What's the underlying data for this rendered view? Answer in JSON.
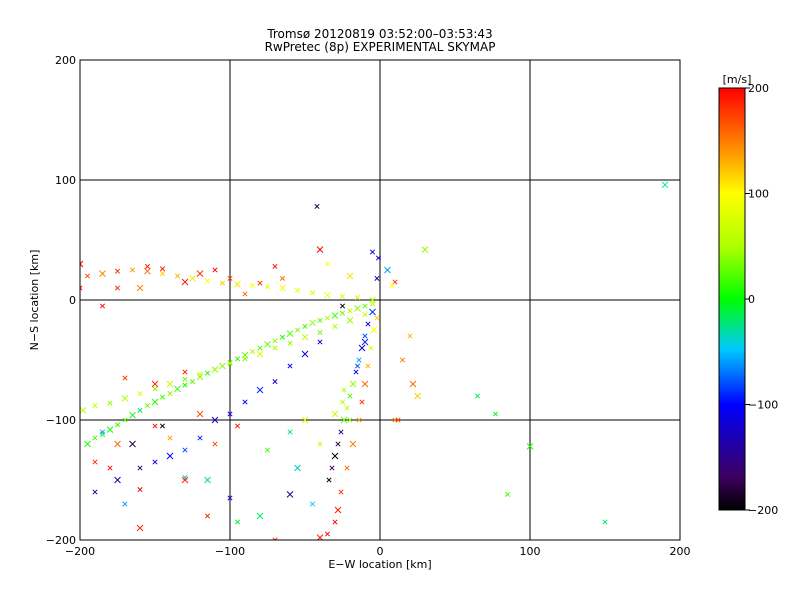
{
  "chart_data": {
    "type": "scatter",
    "title": "Tromsø 20120819 03:52:00–03:53:43",
    "subtitle": "RwPretec (8p) EXPERIMENTAL SKYMAP",
    "xlabel": "E−W location [km]",
    "ylabel": "N−S location [km]",
    "xlim": [
      -200,
      200
    ],
    "ylim": [
      -200,
      200
    ],
    "xticks": [
      "−200",
      "−100",
      "0",
      "100",
      "200"
    ],
    "yticks": [
      "200",
      "100",
      "0",
      "−100",
      "−200"
    ],
    "grid": true,
    "colorbar": {
      "unit": "[m/s]",
      "range": [
        -200,
        200
      ],
      "ticks": [
        "200",
        "100",
        "0",
        "−100",
        "−200"
      ]
    },
    "points": [
      [
        -195,
        -120,
        10
      ],
      [
        -190,
        -115,
        20
      ],
      [
        -185,
        -112,
        -10
      ],
      [
        -180,
        -108,
        5
      ],
      [
        -175,
        -104,
        15
      ],
      [
        -170,
        -100,
        25
      ],
      [
        -165,
        -96,
        0
      ],
      [
        -160,
        -92,
        -20
      ],
      [
        -155,
        -88,
        30
      ],
      [
        -150,
        -85,
        10
      ],
      [
        -145,
        -81,
        20
      ],
      [
        -140,
        -78,
        40
      ],
      [
        -135,
        -74,
        15
      ],
      [
        -130,
        -71,
        5
      ],
      [
        -125,
        -68,
        25
      ],
      [
        -120,
        -64,
        35
      ],
      [
        -115,
        -61,
        10
      ],
      [
        -110,
        -58,
        20
      ],
      [
        -105,
        -55,
        40
      ],
      [
        -100,
        -52,
        30
      ],
      [
        -95,
        -49,
        15
      ],
      [
        -90,
        -46,
        25
      ],
      [
        -85,
        -43,
        50
      ],
      [
        -80,
        -40,
        20
      ],
      [
        -75,
        -37,
        30
      ],
      [
        -70,
        -34,
        45
      ],
      [
        -65,
        -31,
        10
      ],
      [
        -60,
        -28,
        25
      ],
      [
        -55,
        -25,
        35
      ],
      [
        -50,
        -22,
        20
      ],
      [
        -45,
        -19,
        40
      ],
      [
        -40,
        -17,
        30
      ],
      [
        -35,
        -15,
        50
      ],
      [
        -30,
        -13,
        20
      ],
      [
        -25,
        -11,
        35
      ],
      [
        -20,
        -9,
        60
      ],
      [
        -15,
        -7,
        40
      ],
      [
        -10,
        -5,
        25
      ],
      [
        -5,
        -3,
        55
      ],
      [
        -198,
        -92,
        60
      ],
      [
        -190,
        -88,
        70
      ],
      [
        -180,
        -86,
        45
      ],
      [
        -170,
        -82,
        55
      ],
      [
        -160,
        -78,
        80
      ],
      [
        -150,
        -74,
        40
      ],
      [
        -140,
        -70,
        60
      ],
      [
        -130,
        -66,
        35
      ],
      [
        -120,
        -62,
        70
      ],
      [
        -110,
        -58,
        50
      ],
      [
        -100,
        -53,
        55
      ],
      [
        -90,
        -49,
        40
      ],
      [
        -80,
        -45,
        75
      ],
      [
        -70,
        -40,
        50
      ],
      [
        -60,
        -36,
        45
      ],
      [
        -50,
        -31,
        60
      ],
      [
        -40,
        -27,
        35
      ],
      [
        -30,
        -22,
        55
      ],
      [
        -20,
        -17,
        45
      ],
      [
        -10,
        -12,
        65
      ],
      [
        -195,
        20,
        170
      ],
      [
        -185,
        22,
        150
      ],
      [
        -175,
        24,
        180
      ],
      [
        -165,
        25,
        140
      ],
      [
        -155,
        24,
        160
      ],
      [
        -145,
        22,
        120
      ],
      [
        -135,
        20,
        130
      ],
      [
        -125,
        18,
        110
      ],
      [
        -115,
        16,
        100
      ],
      [
        -105,
        14,
        120
      ],
      [
        -95,
        13,
        110
      ],
      [
        -85,
        12,
        100
      ],
      [
        -75,
        11,
        90
      ],
      [
        -65,
        10,
        95
      ],
      [
        -55,
        8,
        85
      ],
      [
        -45,
        6,
        80
      ],
      [
        -35,
        4,
        90
      ],
      [
        -25,
        3,
        75
      ],
      [
        -15,
        2,
        70
      ],
      [
        -5,
        0,
        60
      ],
      [
        -155,
        28,
        190
      ],
      [
        -145,
        26,
        185
      ],
      [
        -120,
        22,
        180
      ],
      [
        -100,
        18,
        170
      ],
      [
        -80,
        14,
        175
      ],
      [
        -160,
        10,
        150
      ],
      [
        -185,
        -5,
        195
      ],
      [
        -175,
        10,
        185
      ],
      [
        -130,
        15,
        190
      ],
      [
        -110,
        25,
        200
      ],
      [
        -90,
        5,
        160
      ],
      [
        -5,
        -10,
        -90
      ],
      [
        -8,
        -20,
        -110
      ],
      [
        -10,
        -30,
        -80
      ],
      [
        -12,
        -40,
        -120
      ],
      [
        -14,
        -50,
        -60
      ],
      [
        -16,
        -60,
        -100
      ],
      [
        -18,
        -70,
        40
      ],
      [
        -20,
        -80,
        20
      ],
      [
        -22,
        -90,
        60
      ],
      [
        -24,
        -100,
        30
      ],
      [
        -26,
        -110,
        -150
      ],
      [
        -28,
        -120,
        -180
      ],
      [
        -30,
        -130,
        -200
      ],
      [
        -32,
        -140,
        -170
      ],
      [
        -34,
        -150,
        -200
      ],
      [
        -10,
        -35,
        -90
      ],
      [
        -15,
        -55,
        -80
      ],
      [
        -2,
        -15,
        120
      ],
      [
        -4,
        -25,
        100
      ],
      [
        -6,
        -40,
        80
      ],
      [
        -8,
        -55,
        130
      ],
      [
        -10,
        -70,
        160
      ],
      [
        -12,
        -85,
        180
      ],
      [
        -14,
        -100,
        140
      ],
      [
        -18,
        -120,
        150
      ],
      [
        -22,
        -140,
        160
      ],
      [
        -26,
        -160,
        180
      ],
      [
        -28,
        -175,
        190
      ],
      [
        -30,
        -185,
        200
      ],
      [
        -35,
        -195,
        195
      ],
      [
        -40,
        -198,
        190
      ],
      [
        -20,
        -100,
        45
      ],
      [
        -25,
        -85,
        55
      ],
      [
        -30,
        -95,
        65
      ],
      [
        -24,
        -75,
        50
      ],
      [
        -190,
        -160,
        -140
      ],
      [
        -175,
        -150,
        -130
      ],
      [
        -160,
        -140,
        -150
      ],
      [
        -150,
        -135,
        -120
      ],
      [
        -140,
        -130,
        -100
      ],
      [
        -130,
        -125,
        -80
      ],
      [
        -120,
        -115,
        -90
      ],
      [
        -110,
        -100,
        -120
      ],
      [
        -100,
        -95,
        -110
      ],
      [
        -90,
        -85,
        -100
      ],
      [
        -80,
        -75,
        -90
      ],
      [
        -70,
        -68,
        -110
      ],
      [
        -60,
        -55,
        -100
      ],
      [
        -50,
        -45,
        -120
      ],
      [
        -40,
        -35,
        -130
      ],
      [
        -145,
        -105,
        -200
      ],
      [
        -165,
        -120,
        -180
      ],
      [
        -185,
        -110,
        -60
      ],
      [
        -100,
        -165,
        -130
      ],
      [
        -60,
        -162,
        -150
      ],
      [
        -170,
        -170,
        -60
      ],
      [
        -130,
        -148,
        -40
      ],
      [
        -115,
        -150,
        -30
      ],
      [
        -180,
        -140,
        190
      ],
      [
        -160,
        -158,
        200
      ],
      [
        -130,
        -150,
        185
      ],
      [
        -110,
        -120,
        170
      ],
      [
        -150,
        -105,
        195
      ],
      [
        -175,
        -120,
        160
      ],
      [
        -190,
        -135,
        180
      ],
      [
        -140,
        -115,
        140
      ],
      [
        -120,
        -95,
        170
      ],
      [
        -95,
        -105,
        190
      ],
      [
        -170,
        -65,
        180
      ],
      [
        -150,
        -70,
        185
      ],
      [
        -130,
        -60,
        190
      ],
      [
        -115,
        -180,
        190
      ],
      [
        -160,
        -190,
        185
      ],
      [
        -70,
        -200,
        180
      ],
      [
        -45,
        -170,
        -50
      ],
      [
        -55,
        -140,
        -40
      ],
      [
        -60,
        -110,
        -30
      ],
      [
        -75,
        -125,
        20
      ],
      [
        -80,
        -180,
        -20
      ],
      [
        -95,
        -185,
        -10
      ],
      [
        -40,
        -120,
        60
      ],
      [
        -50,
        -100,
        80
      ],
      [
        10,
        -100,
        150
      ],
      [
        12,
        -100,
        170
      ],
      [
        22,
        -70,
        160
      ],
      [
        20,
        -30,
        130
      ],
      [
        15,
        -50,
        150
      ],
      [
        25,
        -80,
        120
      ],
      [
        65,
        -80,
        -15
      ],
      [
        77,
        -95,
        -10
      ],
      [
        100,
        -122,
        10
      ],
      [
        85,
        -162,
        20
      ],
      [
        150,
        -185,
        -20
      ],
      [
        190,
        96,
        -30
      ],
      [
        -5,
        40,
        -100
      ],
      [
        -1,
        35,
        -120
      ],
      [
        -40,
        42,
        200
      ],
      [
        -42,
        78,
        -180
      ],
      [
        10,
        15,
        180
      ],
      [
        30,
        42,
        40
      ],
      [
        -65,
        18,
        160
      ],
      [
        -70,
        28,
        190
      ],
      [
        -200,
        30,
        200
      ],
      [
        -200,
        10,
        195
      ],
      [
        -35,
        30,
        100
      ],
      [
        5,
        25,
        -60
      ],
      [
        -2,
        18,
        -140
      ],
      [
        8,
        12,
        100
      ],
      [
        -20,
        20,
        110
      ],
      [
        -25,
        -5,
        -200
      ]
    ]
  }
}
